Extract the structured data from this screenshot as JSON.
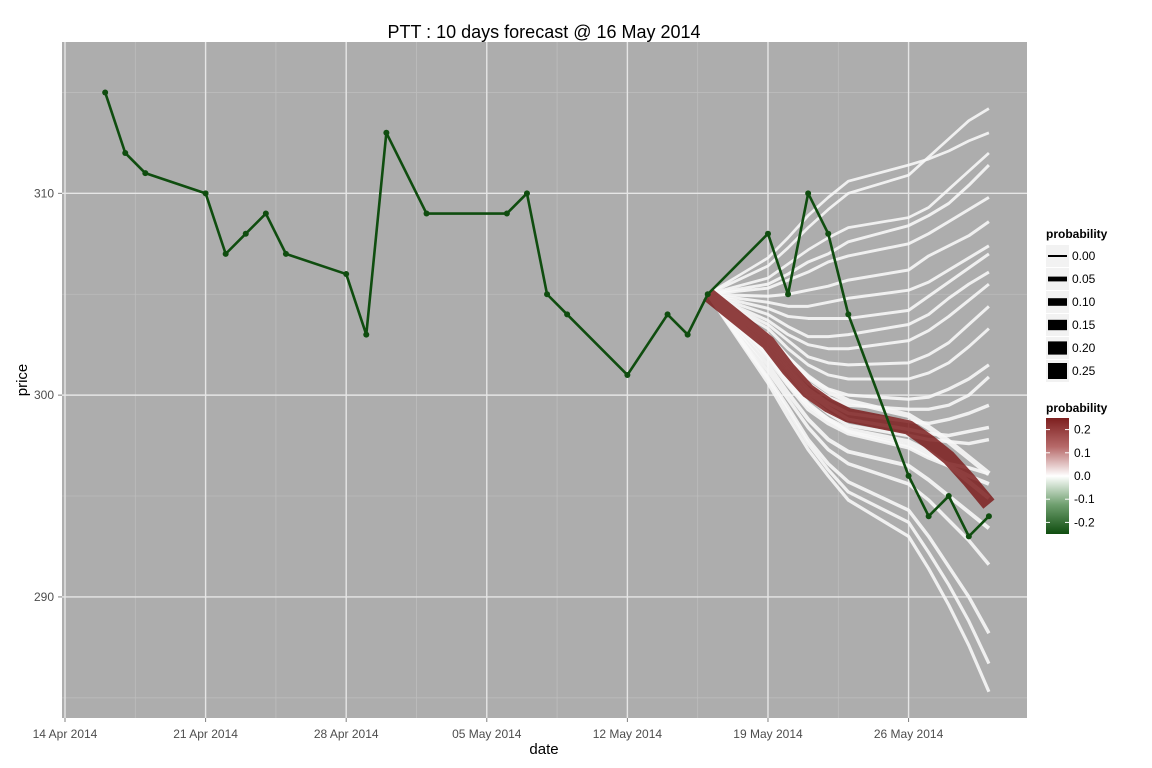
{
  "chart_data": {
    "type": "line",
    "title": "PTT :  10  days forecast @  16 May 2014",
    "xlabel": "date",
    "ylabel": "price",
    "xlim": [
      "2014-04-14",
      "2014-05-31"
    ],
    "ylim": [
      284,
      317.5
    ],
    "x_ticks": [
      {
        "date": "2014-04-14",
        "label": "14 Apr 2014"
      },
      {
        "date": "2014-04-21",
        "label": "21 Apr 2014"
      },
      {
        "date": "2014-04-28",
        "label": "28 Apr 2014"
      },
      {
        "date": "2014-05-05",
        "label": "05 May 2014"
      },
      {
        "date": "2014-05-12",
        "label": "12 May 2014"
      },
      {
        "date": "2014-05-19",
        "label": "19 May 2014"
      },
      {
        "date": "2014-05-26",
        "label": "26 May 2014"
      }
    ],
    "y_ticks": [
      {
        "value": 290,
        "label": "290"
      },
      {
        "value": 300,
        "label": "300"
      },
      {
        "value": 310,
        "label": "310"
      }
    ],
    "grid": true,
    "colors": {
      "panel": "#adadad",
      "grid_major": "#e6e6e6",
      "grid_minor": "#bdbdbd",
      "price_line": "#0f4d0f",
      "forecast_light": "#f2f2f2",
      "forecast_dark": "#7d1f1f"
    },
    "price_series": [
      {
        "x": "2014-04-16",
        "y": 315
      },
      {
        "x": "2014-04-17",
        "y": 312
      },
      {
        "x": "2014-04-18",
        "y": 311
      },
      {
        "x": "2014-04-21",
        "y": 310
      },
      {
        "x": "2014-04-22",
        "y": 307
      },
      {
        "x": "2014-04-23",
        "y": 308
      },
      {
        "x": "2014-04-24",
        "y": 309
      },
      {
        "x": "2014-04-25",
        "y": 307
      },
      {
        "x": "2014-04-28",
        "y": 306
      },
      {
        "x": "2014-04-29",
        "y": 303
      },
      {
        "x": "2014-04-30",
        "y": 313
      },
      {
        "x": "2014-05-02",
        "y": 309
      },
      {
        "x": "2014-05-06",
        "y": 309
      },
      {
        "x": "2014-05-07",
        "y": 310
      },
      {
        "x": "2014-05-08",
        "y": 305
      },
      {
        "x": "2014-05-09",
        "y": 304
      },
      {
        "x": "2014-05-12",
        "y": 301
      },
      {
        "x": "2014-05-14",
        "y": 304
      },
      {
        "x": "2014-05-15",
        "y": 303
      },
      {
        "x": "2014-05-16",
        "y": 305
      },
      {
        "x": "2014-05-19",
        "y": 308
      },
      {
        "x": "2014-05-20",
        "y": 305
      },
      {
        "x": "2014-05-21",
        "y": 310
      },
      {
        "x": "2014-05-22",
        "y": 308
      },
      {
        "x": "2014-05-23",
        "y": 304
      },
      {
        "x": "2014-05-26",
        "y": 296
      },
      {
        "x": "2014-05-27",
        "y": 294
      },
      {
        "x": "2014-05-28",
        "y": 295
      },
      {
        "x": "2014-05-29",
        "y": 293
      },
      {
        "x": "2014-05-30",
        "y": 294
      }
    ],
    "forecast_x": [
      "2014-05-16",
      "2014-05-19",
      "2014-05-20",
      "2014-05-21",
      "2014-05-22",
      "2014-05-23",
      "2014-05-26",
      "2014-05-27",
      "2014-05-28",
      "2014-05-29",
      "2014-05-30"
    ],
    "forecast_paths": [
      {
        "values": [
          305,
          306.8,
          307.8,
          308.9,
          309.8,
          310.6,
          311.4,
          311.7,
          312.1,
          312.6,
          313.0
        ],
        "probability": 0.005
      },
      {
        "values": [
          305,
          306.4,
          307.3,
          308.3,
          309.2,
          310.0,
          310.9,
          311.8,
          312.7,
          313.6,
          314.2
        ],
        "probability": 0.005
      },
      {
        "values": [
          305,
          305.8,
          306.5,
          307.2,
          307.8,
          308.3,
          308.8,
          309.3,
          310.2,
          311.1,
          312.0
        ],
        "probability": 0.005
      },
      {
        "values": [
          305,
          305.5,
          306.0,
          306.6,
          307.0,
          307.6,
          308.4,
          308.9,
          309.5,
          310.4,
          311.4
        ],
        "probability": 0.01
      },
      {
        "values": [
          305,
          305.3,
          305.7,
          306.1,
          306.6,
          306.9,
          307.5,
          308.0,
          308.6,
          309.2,
          309.8
        ],
        "probability": 0.01
      },
      {
        "values": [
          305,
          304.9,
          305.0,
          305.2,
          305.4,
          305.7,
          306.2,
          306.9,
          307.4,
          307.9,
          308.6
        ],
        "probability": 0.01
      },
      {
        "values": [
          305,
          304.6,
          304.4,
          304.4,
          304.6,
          304.8,
          305.2,
          305.6,
          306.2,
          306.8,
          307.4
        ],
        "probability": 0.01
      },
      {
        "values": [
          305,
          304.3,
          303.9,
          303.8,
          303.8,
          303.8,
          304.2,
          304.9,
          305.6,
          306.3,
          307.0
        ],
        "probability": 0.01
      },
      {
        "values": [
          305,
          304.0,
          303.4,
          302.9,
          302.9,
          303.0,
          303.5,
          304.0,
          304.8,
          305.5,
          306.1
        ],
        "probability": 0.01
      },
      {
        "values": [
          305,
          303.7,
          303.0,
          302.5,
          302.3,
          302.3,
          302.7,
          303.2,
          303.9,
          304.7,
          305.5
        ],
        "probability": 0.01
      },
      {
        "values": [
          305,
          303.5,
          302.7,
          301.9,
          301.6,
          301.5,
          301.6,
          302.0,
          302.6,
          303.5,
          304.4
        ],
        "probability": 0.01
      },
      {
        "values": [
          305,
          303.3,
          302.3,
          301.5,
          301.0,
          300.8,
          300.8,
          301.1,
          301.6,
          302.4,
          303.3
        ],
        "probability": 0.01
      },
      {
        "values": [
          305,
          303.0,
          301.9,
          300.9,
          300.3,
          300.0,
          299.8,
          299.9,
          300.3,
          300.8,
          301.5
        ],
        "probability": 0.015
      },
      {
        "values": [
          305,
          302.8,
          301.6,
          300.6,
          299.9,
          299.5,
          299.3,
          299.3,
          299.5,
          300.0,
          300.9
        ],
        "probability": 0.015
      },
      {
        "values": [
          305,
          302.7,
          301.4,
          300.3,
          299.6,
          299.1,
          298.7,
          298.6,
          298.8,
          299.1,
          299.5
        ],
        "probability": 0.02
      },
      {
        "values": [
          305,
          302.5,
          301.3,
          300.1,
          299.4,
          298.8,
          298.3,
          298.1,
          298.0,
          298.2,
          298.4
        ],
        "probability": 0.02
      },
      {
        "values": [
          305,
          302.3,
          301.1,
          299.9,
          299.1,
          298.5,
          298.0,
          297.8,
          297.7,
          297.6,
          297.8
        ],
        "probability": 0.02
      },
      {
        "values": [
          305,
          302.1,
          300.8,
          299.6,
          298.8,
          298.2,
          297.5,
          297.0,
          296.6,
          296.4,
          296.1
        ],
        "probability": 0.02
      },
      {
        "values": [
          305,
          301.8,
          300.5,
          299.3,
          298.6,
          298.1,
          297.4,
          296.9,
          296.5,
          296.0,
          295.6
        ],
        "probability": 0.03
      },
      {
        "values": [
          305,
          302.0,
          300.6,
          299.5,
          298.8,
          298.3,
          297.7,
          297.2,
          296.5,
          295.7,
          294.9
        ],
        "probability": 0.04
      },
      {
        "values": [
          305,
          301.5,
          300.1,
          298.8,
          297.8,
          297.2,
          296.5,
          295.8,
          295.0,
          294.2,
          293.4
        ],
        "probability": 0.03
      },
      {
        "values": [
          305,
          301.2,
          299.8,
          298.4,
          297.3,
          296.6,
          295.6,
          294.8,
          293.8,
          292.8,
          291.6
        ],
        "probability": 0.02
      },
      {
        "values": [
          305,
          300.9,
          299.4,
          297.8,
          296.6,
          295.7,
          294.3,
          293.0,
          291.5,
          290.0,
          288.2
        ],
        "probability": 0.02
      },
      {
        "values": [
          305,
          300.6,
          298.9,
          297.3,
          296.0,
          294.8,
          293.0,
          291.4,
          289.6,
          287.6,
          285.3
        ],
        "probability": 0.015
      },
      {
        "values": [
          305,
          300.8,
          299.2,
          297.6,
          296.3,
          295.2,
          293.7,
          292.2,
          290.6,
          288.8,
          286.7
        ],
        "probability": 0.015
      },
      {
        "values": [
          305,
          302.9,
          301.8,
          300.9,
          300.2,
          299.7,
          299.0,
          298.4,
          297.7,
          296.9,
          296.1
        ],
        "probability": 0.06
      },
      {
        "values": [
          305,
          302.6,
          301.3,
          300.2,
          299.5,
          299.0,
          298.4,
          297.7,
          296.9,
          295.8,
          294.6
        ],
        "probability": 0.25
      }
    ],
    "legend_size": {
      "title": "probability",
      "position": "right",
      "entries": [
        {
          "label": "0.00",
          "value": 0.0
        },
        {
          "label": "0.05",
          "value": 0.05
        },
        {
          "label": "0.10",
          "value": 0.1
        },
        {
          "label": "0.15",
          "value": 0.15
        },
        {
          "label": "0.20",
          "value": 0.2
        },
        {
          "label": "0.25",
          "value": 0.25
        }
      ]
    },
    "legend_color": {
      "title": "probability",
      "position": "right",
      "range": [
        -0.25,
        0.25
      ],
      "colorbar_colors": [
        "#7d1f1f",
        "#b76a6a",
        "#ffffff",
        "#6e9e6e",
        "#0f4d0f"
      ],
      "entries": [
        {
          "label": "0.2",
          "value": 0.2
        },
        {
          "label": "0.1",
          "value": 0.1
        },
        {
          "label": "0.0",
          "value": 0.0
        },
        {
          "label": "-0.1",
          "value": -0.1
        },
        {
          "label": "-0.2",
          "value": -0.2
        }
      ]
    }
  }
}
